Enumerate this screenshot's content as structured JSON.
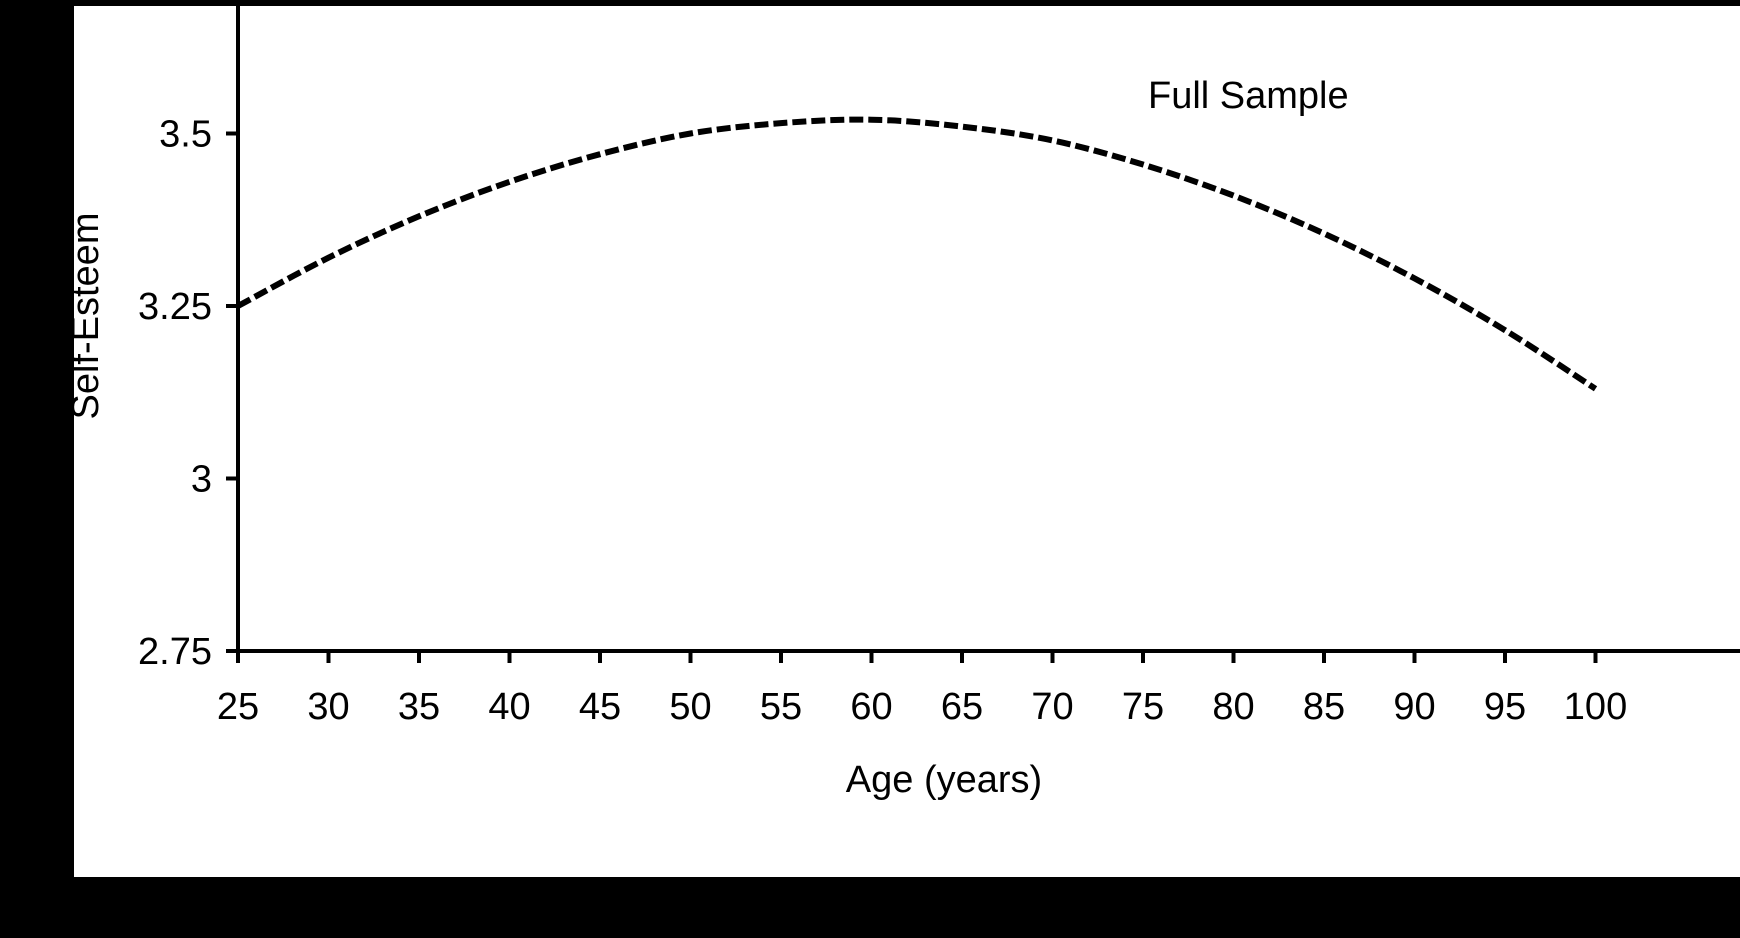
{
  "chart_data": {
    "type": "line",
    "title": "",
    "xlabel": "Age (years)",
    "ylabel": "Self-Esteem",
    "xlim": [
      25,
      100
    ],
    "ylim": [
      2.75,
      3.75
    ],
    "xticks": [
      25,
      30,
      35,
      40,
      45,
      50,
      55,
      60,
      65,
      70,
      75,
      80,
      85,
      90,
      95,
      100
    ],
    "xtick_labels": [
      "25",
      "30",
      "35",
      "40",
      "45",
      "50",
      "55",
      "60",
      "65",
      "70",
      "75",
      "80",
      "85",
      "90",
      "95",
      "100"
    ],
    "yticks": [
      2.75,
      3.0,
      3.25,
      3.5
    ],
    "ytick_labels": [
      "2.75",
      "3",
      "3.25",
      "3.5"
    ],
    "grid": false,
    "annotation": "Full Sample",
    "series": [
      {
        "line_style": "dashed",
        "color": "#000000",
        "x": [
          25,
          30,
          35,
          40,
          45,
          50,
          55,
          60,
          65,
          70,
          75,
          80,
          85,
          90,
          95,
          100
        ],
        "y": [
          3.25,
          3.32,
          3.38,
          3.43,
          3.47,
          3.5,
          3.515,
          3.52,
          3.51,
          3.49,
          3.455,
          3.41,
          3.355,
          3.29,
          3.215,
          3.13
        ]
      }
    ]
  }
}
